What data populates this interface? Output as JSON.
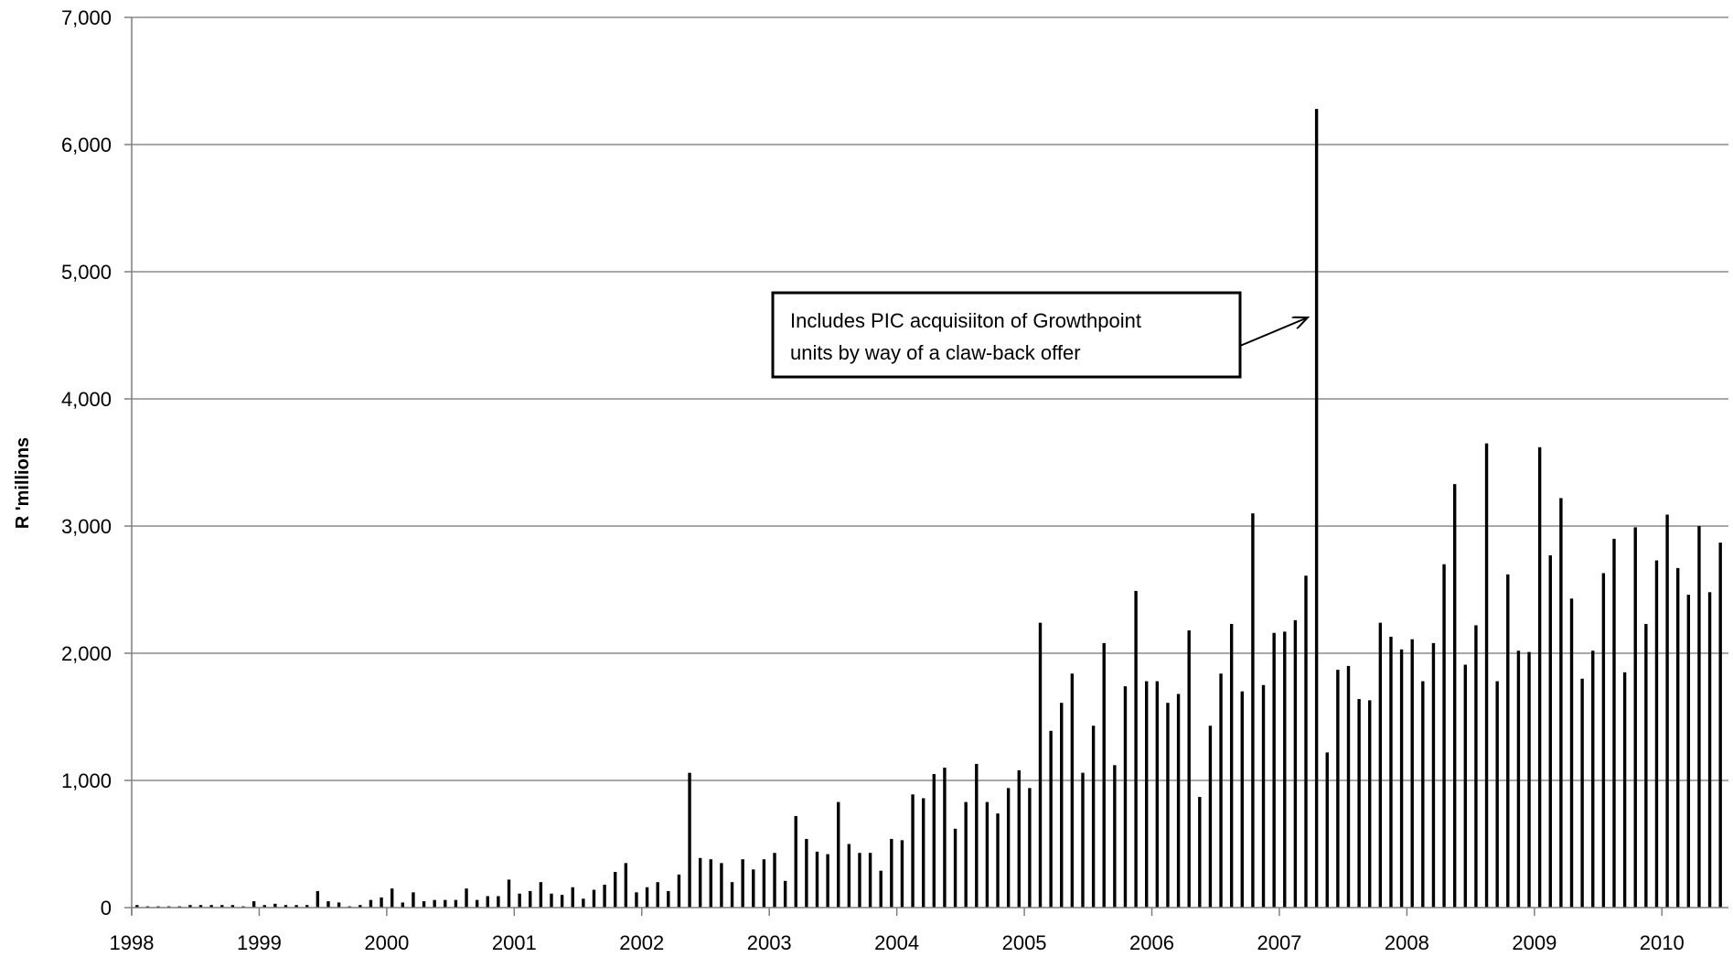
{
  "chart_data": {
    "type": "bar",
    "title": "",
    "xlabel": "",
    "ylabel": "R 'millions",
    "ylim": [
      0,
      7000
    ],
    "yticks": [
      "0",
      "1,000",
      "2,000",
      "3,000",
      "4,000",
      "5,000",
      "6,000",
      "7,000"
    ],
    "xticks": [
      "1998",
      "1999",
      "2000",
      "2001",
      "2002",
      "2003",
      "2004",
      "2005",
      "2006",
      "2007",
      "2008",
      "2009",
      "2010"
    ],
    "grid": true,
    "legend": "none",
    "x_start": "1998-01",
    "x_frequency": "monthly",
    "x_end": "2010-06",
    "values": [
      20,
      10,
      10,
      10,
      10,
      20,
      20,
      20,
      20,
      20,
      10,
      50,
      20,
      30,
      20,
      20,
      20,
      130,
      50,
      40,
      10,
      20,
      60,
      80,
      150,
      40,
      120,
      50,
      60,
      60,
      60,
      150,
      60,
      90,
      90,
      220,
      110,
      130,
      200,
      110,
      100,
      160,
      70,
      140,
      180,
      280,
      350,
      120,
      160,
      200,
      130,
      260,
      1060,
      390,
      380,
      350,
      200,
      380,
      300,
      380,
      430,
      210,
      720,
      540,
      440,
      420,
      830,
      500,
      430,
      430,
      290,
      540,
      530,
      890,
      860,
      1050,
      1100,
      620,
      830,
      1130,
      830,
      740,
      940,
      1080,
      940,
      2240,
      1390,
      1610,
      1840,
      1060,
      1430,
      2080,
      1120,
      1740,
      2490,
      1780,
      1780,
      1610,
      1680,
      2180,
      870,
      1430,
      1840,
      2230,
      1700,
      3100,
      1750,
      2160,
      2170,
      2260,
      2610,
      6280,
      1220,
      1870,
      1900,
      1640,
      1630,
      2240,
      2130,
      2030,
      2110,
      1780,
      2080,
      2700,
      3330,
      1910,
      2220,
      3650,
      1780,
      2620,
      2020,
      2010,
      3620,
      2770,
      3220,
      2430,
      1800,
      2020,
      2630,
      2900,
      1850,
      2990,
      2230,
      2730,
      3090,
      2670,
      2460,
      3000,
      2480,
      2870
    ],
    "annotations": [
      {
        "lines": [
          "Includes PIC acquisiiton of Growthpoint",
          "units by way of a claw-back offer"
        ],
        "points_to": "2007-03"
      }
    ]
  }
}
